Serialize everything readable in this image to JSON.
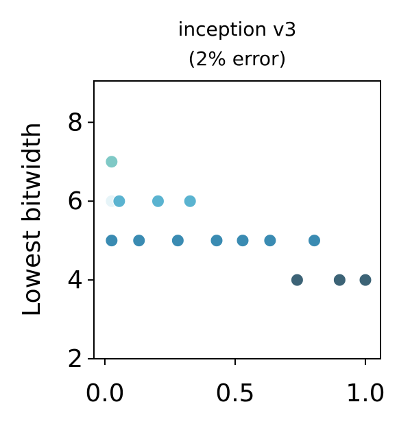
{
  "chart_data": {
    "type": "scatter",
    "title": [
      "inception v3",
      "(2% error)"
    ],
    "ylabel": "Lowest bitwidth",
    "x": [
      0.026,
      0.026,
      0.055,
      0.204,
      0.327,
      0.026,
      0.131,
      0.28,
      0.429,
      0.529,
      0.634,
      0.804,
      0.738,
      0.901,
      1.0
    ],
    "y": [
      7,
      6,
      6,
      6,
      6,
      5,
      5,
      5,
      5,
      5,
      5,
      5,
      4,
      4,
      4
    ],
    "colors": [
      "#7fc9c6",
      "#e6f4f8",
      "#5ab3d0",
      "#5ab3d0",
      "#5ab3d0",
      "#3a8bb2",
      "#3a8bb2",
      "#3a8bb2",
      "#3a8bb2",
      "#3a8bb2",
      "#3a8bb2",
      "#3a8bb2",
      "#3c6376",
      "#3c6376",
      "#3c6376"
    ],
    "xlim": [
      -0.042,
      1.058
    ],
    "ylim": [
      2,
      9.05
    ],
    "xticks": [
      {
        "value": 0,
        "label": "0.0"
      },
      0.5,
      {
        "value": 1,
        "label": "1.0"
      }
    ],
    "yticks": [
      2,
      4,
      6,
      8
    ]
  }
}
